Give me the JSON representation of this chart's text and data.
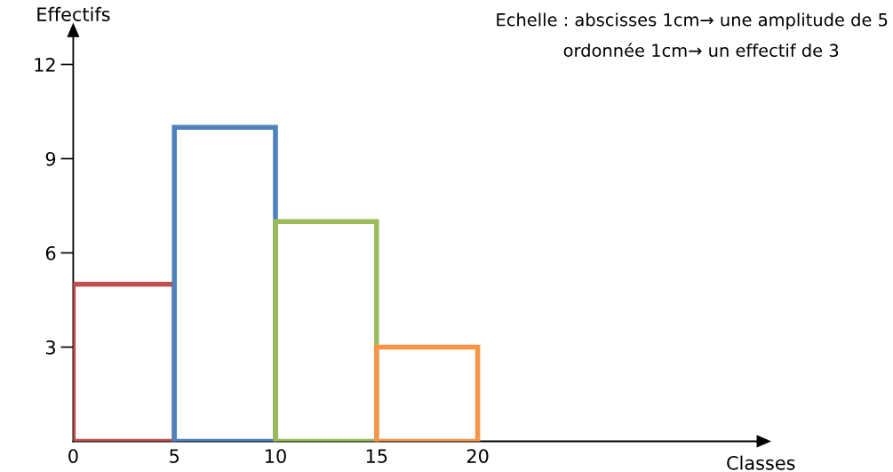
{
  "chart_data": {
    "type": "histogram",
    "xlabel": "Classes",
    "ylabel": "Effectifs",
    "bins": [
      0,
      5,
      10,
      15,
      20
    ],
    "values": [
      5,
      10,
      7,
      3
    ],
    "colors": [
      "#c0504d",
      "#4f81bd",
      "#9bbb59",
      "#f79646"
    ],
    "xlim": [
      0,
      34
    ],
    "ylim": [
      0,
      13
    ],
    "xticks": [
      0,
      5,
      10,
      15,
      20
    ],
    "yticks": [
      3,
      6,
      9,
      12
    ],
    "grid": false,
    "legend": false,
    "annotations": [
      "Echelle : abscisses 1cm→ une amplitude de 5",
      "ordonnée 1cm→ un effectif de 3"
    ]
  }
}
